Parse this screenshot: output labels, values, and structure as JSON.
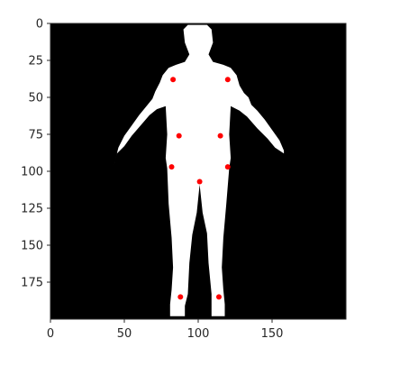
{
  "chart_data": {
    "type": "scatter",
    "title": "",
    "xlabel": "",
    "ylabel": "",
    "xlim": [
      0,
      200
    ],
    "ylim": [
      200,
      0
    ],
    "x_ticks": [
      0,
      50,
      100,
      150
    ],
    "y_ticks": [
      0,
      25,
      50,
      75,
      100,
      125,
      150,
      175
    ],
    "grid": false,
    "background": "binary silhouette image (white figure on black)",
    "colors": {
      "background": "#000000",
      "silhouette": "#ffffff",
      "points": "#ff0000"
    },
    "series": [
      {
        "x": [
          83,
          120,
          87,
          115,
          82,
          120,
          101,
          88,
          114
        ],
        "y": [
          38,
          38,
          76,
          76,
          97,
          97,
          107,
          185,
          185
        ]
      }
    ]
  }
}
